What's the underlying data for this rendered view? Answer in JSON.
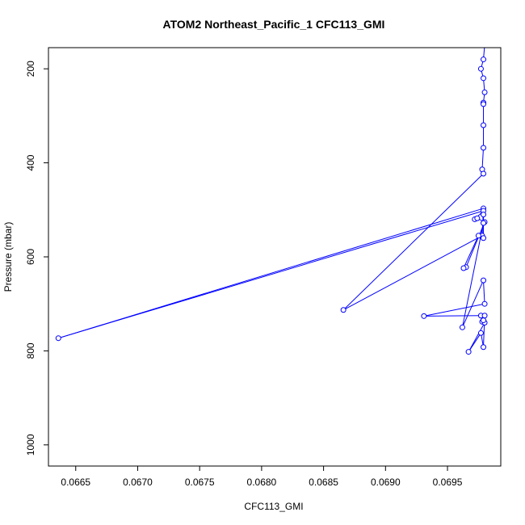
{
  "chart_data": {
    "type": "line",
    "title": "ATOM2 Northeast_Pacific_1 CFC113_GMI",
    "xlabel": "CFC113_GMI",
    "ylabel": "Pressure (mbar)",
    "xlim": [
      0.06628,
      0.06993
    ],
    "ylim": [
      1045,
      155
    ],
    "y_reversed": true,
    "grid": false,
    "line_color": "#0000ff",
    "marker": "open-circle",
    "x_ticks": [
      0.0665,
      0.067,
      0.0675,
      0.068,
      0.0685,
      0.069,
      0.0695
    ],
    "x_tick_labels": [
      "0.0665",
      "0.0670",
      "0.0675",
      "0.0680",
      "0.0685",
      "0.0690",
      "0.0695"
    ],
    "y_ticks": [
      200,
      400,
      600,
      800,
      1000
    ],
    "y_tick_labels": [
      "200",
      "400",
      "600",
      "800",
      "1000"
    ],
    "points": [
      {
        "x": 0.0698,
        "y": 150
      },
      {
        "x": 0.06979,
        "y": 180
      },
      {
        "x": 0.06977,
        "y": 200
      },
      {
        "x": 0.06979,
        "y": 220
      },
      {
        "x": 0.0698,
        "y": 250
      },
      {
        "x": 0.06979,
        "y": 272
      },
      {
        "x": 0.06979,
        "y": 275
      },
      {
        "x": 0.06979,
        "y": 320
      },
      {
        "x": 0.06979,
        "y": 368
      },
      {
        "x": 0.06978,
        "y": 414
      },
      {
        "x": 0.06979,
        "y": 423
      },
      {
        "x": 0.06866,
        "y": 713
      },
      {
        "x": 0.06978,
        "y": 555
      },
      {
        "x": 0.06979,
        "y": 497
      },
      {
        "x": 0.06636,
        "y": 773
      },
      {
        "x": 0.06979,
        "y": 502
      },
      {
        "x": 0.06972,
        "y": 520
      },
      {
        "x": 0.06974,
        "y": 518
      },
      {
        "x": 0.0698,
        "y": 526
      },
      {
        "x": 0.06965,
        "y": 622
      },
      {
        "x": 0.06963,
        "y": 624
      },
      {
        "x": 0.06975,
        "y": 555
      },
      {
        "x": 0.06979,
        "y": 560
      },
      {
        "x": 0.06979,
        "y": 510
      },
      {
        "x": 0.06979,
        "y": 528
      },
      {
        "x": 0.06962,
        "y": 750
      },
      {
        "x": 0.06979,
        "y": 650
      },
      {
        "x": 0.0698,
        "y": 700
      },
      {
        "x": 0.06931,
        "y": 726
      },
      {
        "x": 0.06977,
        "y": 725
      },
      {
        "x": 0.06978,
        "y": 738
      },
      {
        "x": 0.0698,
        "y": 740
      },
      {
        "x": 0.06967,
        "y": 802
      },
      {
        "x": 0.06977,
        "y": 762
      },
      {
        "x": 0.06979,
        "y": 792
      },
      {
        "x": 0.0698,
        "y": 725
      },
      {
        "x": 0.06979,
        "y": 735
      }
    ]
  }
}
